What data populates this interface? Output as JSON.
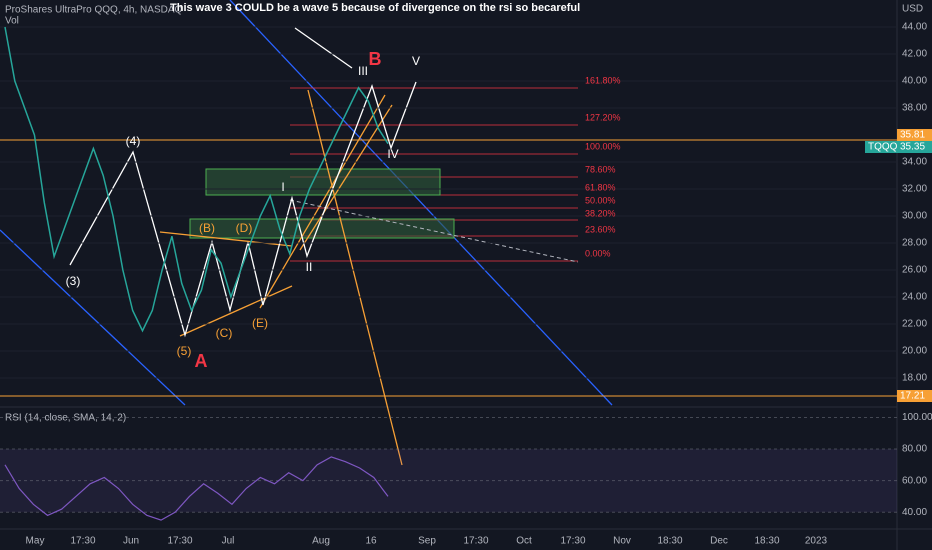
{
  "header": {
    "symbol": "ProShares UltraPro QQQ, 4h, NASDAQ",
    "volume": "Vol",
    "currency": "USD",
    "note": "This wave 3 COULD be a wave 5 because of divergence on the rsi so becareful"
  },
  "price_axis": {
    "ylim": [
      16,
      46
    ],
    "ticks": [
      {
        "value": 44,
        "label": "44.00"
      },
      {
        "value": 42,
        "label": "42.00"
      },
      {
        "value": 40,
        "label": "40.00"
      },
      {
        "value": 38,
        "label": "38.00"
      },
      {
        "value": 34,
        "label": "34.00"
      },
      {
        "value": 32,
        "label": "32.00"
      },
      {
        "value": 30,
        "label": "30.00"
      },
      {
        "value": 28,
        "label": "28.00"
      },
      {
        "value": 26,
        "label": "26.00"
      },
      {
        "value": 24,
        "label": "24.00"
      },
      {
        "value": 22,
        "label": "22.00"
      },
      {
        "value": 20,
        "label": "20.00"
      },
      {
        "value": 18,
        "label": "18.00"
      }
    ],
    "marker_high": "35.81",
    "symbol_tag": "TQQQ",
    "last": "35.35",
    "marker_low": "17.21"
  },
  "price": {
    "closes": [
      44,
      40,
      38,
      36,
      31,
      27,
      29,
      31,
      33,
      35,
      33,
      30,
      26,
      23,
      21.5,
      23,
      26,
      28.5,
      25,
      23,
      24.5,
      27.5,
      26.5,
      24,
      26,
      28,
      30,
      31.5,
      29,
      27.2,
      30,
      32,
      33.5,
      35,
      36.5,
      38,
      39.5,
      38.5,
      36.5,
      35.35
    ]
  },
  "rsi": {
    "label": "RSI (14, close, SMA, 14, 2)",
    "ylim": [
      30,
      106
    ],
    "ticks": [
      {
        "value": 100,
        "label": "100.00"
      },
      {
        "value": 80,
        "label": "80.00"
      },
      {
        "value": 60,
        "label": "60.00"
      },
      {
        "value": 40,
        "label": "40.00"
      }
    ],
    "values": [
      70,
      55,
      45,
      38,
      42,
      50,
      58,
      62,
      55,
      45,
      38,
      35,
      40,
      50,
      58,
      52,
      45,
      55,
      62,
      58,
      65,
      60,
      70,
      75,
      72,
      68,
      62,
      50
    ]
  },
  "time_axis": [
    "May",
    "17:30",
    "Jun",
    "17:30",
    "Jul",
    "Aug",
    "16",
    "Sep",
    "17:30",
    "Oct",
    "17:30",
    "Nov",
    "18:30",
    "Dec",
    "18:30",
    "2023"
  ],
  "waves": [
    "(4)",
    "(3)",
    "(5)",
    "A",
    "(B)",
    "(D)",
    "(C)",
    "(E)",
    "I",
    "II",
    "III",
    "B",
    "IV",
    "V"
  ],
  "fib": [
    "161.80%",
    "127.20%",
    "100.00%",
    "78.60%",
    "61.80%",
    "50.00%",
    "38.20%",
    "23.60%",
    "0.00%"
  ]
}
